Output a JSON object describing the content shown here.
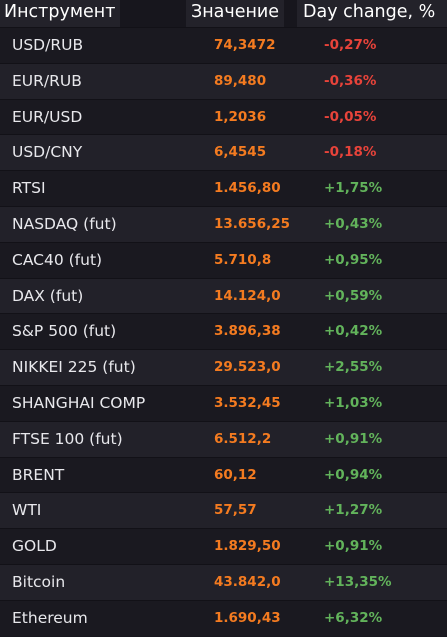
{
  "header": {
    "instrument": "Инструмент",
    "value": "Значение",
    "change": "Day change, %"
  },
  "colors": {
    "value": "#f47b20",
    "negative": "#e8433a",
    "positive": "#62b35b",
    "background": "#17161d"
  },
  "rows": [
    {
      "name": "USD/RUB",
      "value": "74,3472",
      "change": "-0,27%",
      "dir": "neg"
    },
    {
      "name": "EUR/RUB",
      "value": "89,480",
      "change": "-0,36%",
      "dir": "neg"
    },
    {
      "name": "EUR/USD",
      "value": "1,2036",
      "change": "-0,05%",
      "dir": "neg"
    },
    {
      "name": "USD/CNY",
      "value": "6,4545",
      "change": "-0,18%",
      "dir": "neg"
    },
    {
      "name": "RTSI",
      "value": "1.456,80",
      "change": "+1,75%",
      "dir": "pos"
    },
    {
      "name": "NASDAQ (fut)",
      "value": "13.656,25",
      "change": "+0,43%",
      "dir": "pos"
    },
    {
      "name": "CAC40 (fut)",
      "value": "5.710,8",
      "change": "+0,95%",
      "dir": "pos"
    },
    {
      "name": "DAX (fut)",
      "value": "14.124,0",
      "change": "+0,59%",
      "dir": "pos"
    },
    {
      "name": "S&P 500 (fut)",
      "value": "3.896,38",
      "change": "+0,42%",
      "dir": "pos"
    },
    {
      "name": "NIKKEI 225 (fut)",
      "value": "29.523,0",
      "change": "+2,55%",
      "dir": "pos"
    },
    {
      "name": "SHANGHAI COMP",
      "value": "3.532,45",
      "change": "+1,03%",
      "dir": "pos"
    },
    {
      "name": "FTSE 100 (fut)",
      "value": "6.512,2",
      "change": "+0,91%",
      "dir": "pos"
    },
    {
      "name": "BRENT",
      "value": "60,12",
      "change": "+0,94%",
      "dir": "pos"
    },
    {
      "name": "WTI",
      "value": "57,57",
      "change": "+1,27%",
      "dir": "pos"
    },
    {
      "name": "GOLD",
      "value": "1.829,50",
      "change": "+0,91%",
      "dir": "pos"
    },
    {
      "name": "Bitcoin",
      "value": "43.842,0",
      "change": "+13,35%",
      "dir": "pos"
    },
    {
      "name": "Ethereum",
      "value": "1.690,43",
      "change": "+6,32%",
      "dir": "pos"
    }
  ]
}
